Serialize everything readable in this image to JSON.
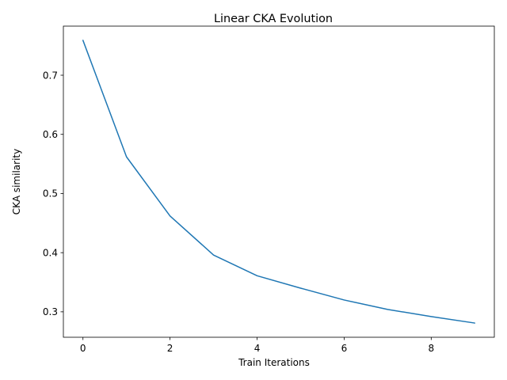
{
  "chart_data": {
    "type": "line",
    "title": "Linear CKA Evolution",
    "xlabel": "Train Iterations",
    "ylabel": "CKA similarity",
    "x": [
      0,
      1,
      2,
      3,
      4,
      5,
      6,
      7,
      8,
      9
    ],
    "series": [
      {
        "values": [
          0.759,
          0.562,
          0.462,
          0.396,
          0.361,
          0.34,
          0.32,
          0.304,
          0.292,
          0.281
        ]
      }
    ],
    "xticks": [
      0,
      2,
      4,
      6,
      8
    ],
    "xtick_labels": [
      "0",
      "2",
      "4",
      "6",
      "8"
    ],
    "yticks": [
      0.3,
      0.4,
      0.5,
      0.6,
      0.7
    ],
    "ytick_labels": [
      "0.3",
      "0.4",
      "0.5",
      "0.6",
      "0.7"
    ],
    "xlim": [
      -0.45,
      9.45
    ],
    "ylim": [
      0.257,
      0.783
    ],
    "grid": false,
    "colors": {
      "line": "#1f77b4"
    }
  }
}
